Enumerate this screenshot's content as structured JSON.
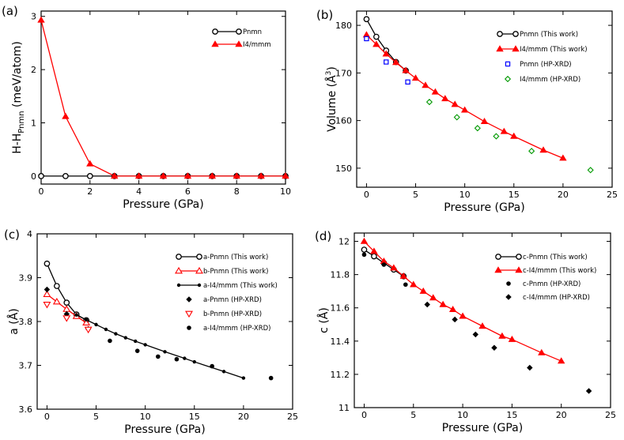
{
  "chart_data": [
    {
      "type": "line",
      "panel_label": "(a)",
      "xlabel": "Pressure (GPa)",
      "ylabel_main": "H-H",
      "ylabel_sub": "Pnmn",
      "ylabel_unit": "(meV/atom)",
      "xlim": [
        0,
        10
      ],
      "ylim": [
        -0.15,
        3.1
      ],
      "xticks": [
        0,
        2,
        4,
        6,
        8,
        10
      ],
      "yticks": [
        0,
        1,
        2,
        3
      ],
      "legend_position": "top-right",
      "series": [
        {
          "name": "Pnmn",
          "color": "#000000",
          "marker": "open-circle",
          "line": true,
          "x": [
            0,
            1,
            2,
            3,
            4,
            5,
            6,
            7,
            8,
            9,
            10
          ],
          "y": [
            0,
            0,
            0,
            0,
            0,
            0,
            0,
            0,
            0,
            0,
            0
          ]
        },
        {
          "name": "I4/mmm",
          "color": "#ff0000",
          "marker": "filled-triangle",
          "line": true,
          "x": [
            0,
            1,
            2,
            3,
            4,
            5,
            6,
            7,
            8,
            9,
            10
          ],
          "y": [
            2.93,
            1.12,
            0.23,
            0,
            0,
            0,
            0,
            0,
            0,
            0,
            0
          ]
        }
      ]
    },
    {
      "type": "line",
      "panel_label": "(b)",
      "xlabel": "Pressure (GPa)",
      "ylabel_main": "Volume (Å",
      "ylabel_sup": "3",
      "ylabel_end": ")",
      "xlim": [
        -1,
        25
      ],
      "ylim": [
        146,
        183
      ],
      "xticks": [
        0,
        5,
        10,
        15,
        20,
        25
      ],
      "yticks": [
        150,
        160,
        170,
        180
      ],
      "legend_position": "top-right",
      "series": [
        {
          "name": "Pnmn (This work)",
          "color": "#000000",
          "marker": "open-circle",
          "line": true,
          "x": [
            0,
            1,
            2,
            3,
            4
          ],
          "y": [
            181.3,
            177.6,
            174.7,
            172.3,
            170.5
          ]
        },
        {
          "name": "I4/mmm (This work)",
          "color": "#ff0000",
          "marker": "filled-triangle",
          "line": true,
          "x": [
            0,
            1,
            2,
            3,
            4,
            5,
            6,
            7,
            8,
            9,
            10,
            12,
            14,
            15,
            18,
            20
          ],
          "y": [
            178.0,
            176.0,
            174.0,
            172.2,
            170.5,
            168.9,
            167.4,
            166.0,
            164.6,
            163.4,
            162.2,
            159.8,
            157.7,
            156.7,
            153.8,
            152.1
          ]
        },
        {
          "name": "Pnmn (HP-XRD)",
          "color": "#0000ff",
          "marker": "open-square",
          "line": false,
          "x": [
            0,
            2,
            4.2
          ],
          "y": [
            177.2,
            172.3,
            168.1
          ]
        },
        {
          "name": "I4/mmm (HP-XRD)",
          "color": "#009900",
          "marker": "open-diamond",
          "line": false,
          "x": [
            6.4,
            9.2,
            11.3,
            13.2,
            16.8,
            22.8
          ],
          "y": [
            163.9,
            160.7,
            158.4,
            156.7,
            153.6,
            149.6
          ]
        }
      ]
    },
    {
      "type": "line",
      "panel_label": "(c)",
      "xlabel": "Pressure (GPa)",
      "ylabel_main": "a (Å)",
      "xlim": [
        -1,
        25
      ],
      "ylim": [
        3.6,
        4.0
      ],
      "xticks": [
        0,
        5,
        10,
        15,
        20,
        25
      ],
      "yticks": [
        3.6,
        3.7,
        3.8,
        3.9,
        4.0
      ],
      "ytick_labels": [
        "3.6",
        "3.7",
        "3.8",
        "3.9",
        "4"
      ],
      "legend_position": "top-right",
      "series": [
        {
          "name": "a-Pnmn (This work)",
          "color": "#000000",
          "marker": "open-circle",
          "line": true,
          "x": [
            0,
            1,
            2,
            3,
            4
          ],
          "y": [
            3.932,
            3.881,
            3.843,
            3.816,
            3.803
          ]
        },
        {
          "name": "b-Pnmn (This work)",
          "color": "#ff0000",
          "marker": "open-triangle",
          "line": true,
          "x": [
            0,
            1,
            2,
            3,
            4
          ],
          "y": [
            3.862,
            3.845,
            3.828,
            3.812,
            3.797
          ]
        },
        {
          "name": "a-I4/mmm (This work)",
          "color": "#000000",
          "marker": "small-dot",
          "line": true,
          "x": [
            3,
            4,
            5,
            6,
            7,
            8,
            9,
            10,
            12,
            14,
            15,
            18,
            20
          ],
          "y": [
            3.815,
            3.804,
            3.793,
            3.782,
            3.772,
            3.763,
            3.755,
            3.747,
            3.731,
            3.716,
            3.708,
            3.686,
            3.671
          ]
        },
        {
          "name": "a-Pnmn (HP-XRD)",
          "color": "#000000",
          "marker": "filled-diamond",
          "line": false,
          "x": [
            0,
            2,
            4.2
          ],
          "y": [
            3.873,
            3.817,
            3.783
          ]
        },
        {
          "name": "b-Pnmn (HP-XRD)",
          "color": "#ff0000",
          "marker": "open-down-triangle",
          "line": false,
          "x": [
            0,
            2,
            4.2
          ],
          "y": [
            3.839,
            3.808,
            3.782
          ]
        },
        {
          "name": "a-I4/mmm (HP-XRD)",
          "color": "#000000",
          "marker": "filled-circle",
          "line": false,
          "x": [
            6.4,
            9.2,
            11.3,
            13.2,
            16.8,
            22.8
          ],
          "y": [
            3.756,
            3.733,
            3.72,
            3.714,
            3.698,
            3.671
          ]
        }
      ]
    },
    {
      "type": "line",
      "panel_label": "(d)",
      "xlabel": "Pressure (GPa)",
      "ylabel_main": "c (Å)",
      "xlim": [
        -1,
        25
      ],
      "ylim": [
        11.0,
        12.05
      ],
      "xticks": [
        0,
        5,
        10,
        15,
        20,
        25
      ],
      "yticks": [
        11.0,
        11.2,
        11.4,
        11.6,
        11.8,
        12.0
      ],
      "ytick_labels": [
        "11",
        "11.2",
        "11.4",
        "11.6",
        "11.8",
        "12"
      ],
      "legend_position": "top-right",
      "series": [
        {
          "name": "c-Pnmn (This work)",
          "color": "#000000",
          "marker": "open-circle",
          "line": true,
          "x": [
            0,
            1,
            2,
            3,
            4
          ],
          "y": [
            11.95,
            11.91,
            11.87,
            11.83,
            11.79
          ]
        },
        {
          "name": "c-I4/mmm (This work)",
          "color": "#ff0000",
          "marker": "filled-triangle",
          "line": true,
          "x": [
            0,
            1,
            2,
            3,
            4,
            5,
            6,
            7,
            8,
            9,
            10,
            12,
            14,
            15,
            18,
            20
          ],
          "y": [
            12.0,
            11.94,
            11.88,
            11.84,
            11.79,
            11.74,
            11.7,
            11.66,
            11.62,
            11.59,
            11.55,
            11.49,
            11.43,
            11.41,
            11.33,
            11.28
          ]
        },
        {
          "name": "c-Pnmn (HP-XRD)",
          "color": "#000000",
          "marker": "filled-circle",
          "line": false,
          "x": [
            0,
            2,
            4.2
          ],
          "y": [
            11.92,
            11.86,
            11.74
          ]
        },
        {
          "name": "c-I4/mmm (HP-XRD)",
          "color": "#000000",
          "marker": "filled-diamond",
          "line": false,
          "x": [
            6.4,
            9.2,
            11.3,
            13.2,
            16.8,
            22.8
          ],
          "y": [
            11.62,
            11.53,
            11.44,
            11.36,
            11.24,
            11.1
          ]
        }
      ]
    }
  ]
}
